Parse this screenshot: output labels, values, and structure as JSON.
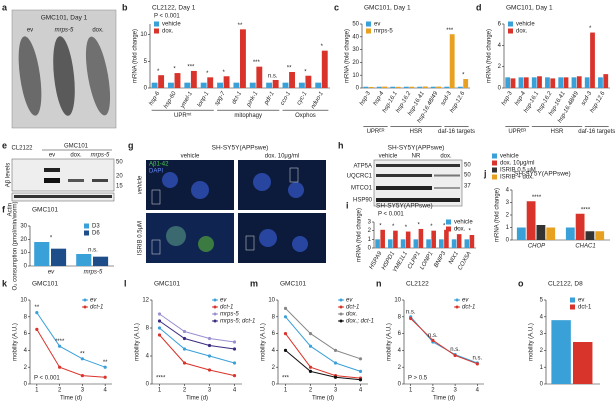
{
  "image_panels": {
    "a": {
      "label": "a",
      "title": "GMC101, Day 1",
      "lanes": [
        "ev",
        "mrps-5",
        "dox."
      ]
    },
    "e": {
      "label": "e",
      "groups": [
        "CL2122",
        "GMC101"
      ],
      "lanes": [
        "ev",
        "dox.",
        "mrps-5"
      ],
      "rows": [
        "Aβ levels",
        "Actin"
      ],
      "markers": [
        "50",
        "20",
        "15"
      ]
    },
    "g": {
      "label": "g",
      "title": "SH-SY5Y(APPswe)",
      "columns": [
        "vehicle",
        "dox. 10μg/ml"
      ],
      "rows": [
        "vehicle",
        "ISRIB 0.5μM"
      ],
      "stains": [
        "Aβ1-42",
        "DAPI"
      ]
    },
    "h": {
      "label": "h",
      "title": "SH-SY5Y(APPswe)",
      "lanes": [
        "vehicle",
        "NR",
        "dox."
      ],
      "proteins": [
        "ATP5A",
        "UQCRC1",
        "MTCO1",
        "HSP90"
      ],
      "markers": [
        "50",
        "50",
        "37"
      ]
    }
  },
  "chart_data": [
    {
      "panel": "b",
      "type": "bar",
      "title": "CL2122, Day 1",
      "annotation": "P < 0.001",
      "ylabel": "mRNA (fold change)",
      "legend": "upper left",
      "categories": [
        "hsp-6",
        "hsp-60",
        "ymel-1",
        "lonp-1",
        "spg-7",
        "dct-1",
        "pink-1",
        "pdr-1",
        "cco-1",
        "cyc-1",
        "nduo-1"
      ],
      "groups": [
        "UPRᵐᵗ",
        "UPRᵐᵗ",
        "UPRᵐᵗ",
        "UPRᵐᵗ",
        "mitophagy",
        "mitophagy",
        "mitophagy",
        "mitophagy",
        "Oxphos",
        "Oxphos",
        "Oxphos"
      ],
      "series": [
        {
          "name": "vehicle",
          "color": "#3aa0d8",
          "values": [
            1,
            1,
            1,
            1,
            1,
            1,
            1,
            1,
            1,
            1,
            1
          ]
        },
        {
          "name": "dox.",
          "color": "#d9342b",
          "values": [
            2.4,
            2.8,
            3.2,
            2.0,
            2.2,
            11.0,
            4.0,
            1.5,
            3.0,
            2.3,
            7.0
          ]
        }
      ],
      "significance": [
        "*",
        "*",
        "***",
        "*",
        "*",
        "**",
        "***",
        "n.s.",
        "**",
        "*",
        "*"
      ],
      "ylim": [
        0,
        12
      ],
      "yticks": [
        0,
        5,
        10
      ]
    },
    {
      "panel": "c",
      "type": "bar",
      "title": "GMC101, Day 1",
      "ylabel": "mRNA (fold change)",
      "legend": "upper left",
      "categories": [
        "hsp-3",
        "hsp-4",
        "hsp-16.1",
        "hsp-16.2",
        "hsp-16.41",
        "hsp-16.48/49",
        "sod-3",
        "hsp-12.6"
      ],
      "groups": [
        "UPRᴱᴿ",
        "UPRᴱᴿ",
        "HSR",
        "HSR",
        "HSR",
        "HSR",
        "daf-16 targets",
        "daf-16 targets"
      ],
      "series": [
        {
          "name": "ev",
          "color": "#3aa0d8",
          "values": [
            1,
            1,
            1,
            1,
            1,
            1,
            1,
            1
          ]
        },
        {
          "name": "mrps-5",
          "color": "#e8a020",
          "values": [
            0.8,
            1.1,
            0.9,
            1.0,
            1.2,
            1.1,
            42,
            7
          ]
        }
      ],
      "significance": [
        null,
        null,
        null,
        null,
        null,
        null,
        "***",
        "*"
      ],
      "ylim": [
        0,
        50
      ],
      "yticks": [
        0,
        10,
        20,
        30,
        40,
        50
      ]
    },
    {
      "panel": "d",
      "type": "bar",
      "title": "GMC101, Day 1",
      "ylabel": "mRNA (fold change)",
      "legend": "upper left",
      "categories": [
        "hsp-3",
        "hsp-4",
        "hsp-16.1",
        "hsp-16.2",
        "hsp-16.41",
        "hsp-16.48/49",
        "sod-3",
        "hsp-12.6"
      ],
      "groups": [
        "UPRᴱᴿ",
        "UPRᴱᴿ",
        "HSR",
        "HSR",
        "HSR",
        "HSR",
        "daf-16 targets",
        "daf-16 targets"
      ],
      "series": [
        {
          "name": "vehicle",
          "color": "#3aa0d8",
          "values": [
            1,
            1,
            1,
            1,
            1,
            1,
            1,
            1
          ]
        },
        {
          "name": "dox.",
          "color": "#d9342b",
          "values": [
            0.9,
            1.0,
            1.1,
            0.9,
            1.0,
            1.1,
            5.2,
            1.3
          ]
        }
      ],
      "significance": [
        null,
        null,
        null,
        null,
        null,
        null,
        "*",
        null
      ],
      "ylim": [
        0,
        6
      ],
      "yticks": [
        0,
        2,
        4,
        6
      ]
    },
    {
      "panel": "f",
      "type": "bar",
      "title": "GMC101",
      "ylabel": "O₂ consumption (pmol/min/worm)",
      "legend": "upper right",
      "categories": [
        "ev",
        "mrps-5"
      ],
      "series": [
        {
          "name": "D3",
          "color": "#3aa0d8",
          "values": [
            18,
            9
          ]
        },
        {
          "name": "D6",
          "color": "#1d4e89",
          "values": [
            13,
            7
          ]
        }
      ],
      "significance": [
        "*",
        "n.s."
      ],
      "ylim": [
        0,
        30
      ],
      "yticks": [
        0,
        10,
        20,
        30
      ]
    },
    {
      "panel": "i",
      "type": "bar",
      "title": "SH-SY5Y(APPswe)",
      "annotation": "P < 0.001",
      "ylabel": "mRNA (fold change)",
      "legend": "upper right",
      "categories": [
        "HSPA9",
        "HSPD1",
        "YME1L1",
        "CLPP1",
        "LONP1",
        "BNIP3",
        "NIX1",
        "COX5A"
      ],
      "series": [
        {
          "name": "vehicle",
          "color": "#3aa0d8",
          "values": [
            1,
            1,
            1,
            1,
            1,
            1,
            1,
            1
          ]
        },
        {
          "name": "dox.",
          "color": "#d9342b",
          "values": [
            2.1,
            2.0,
            1.9,
            2.2,
            2.0,
            2.1,
            1.6,
            1.5
          ]
        }
      ],
      "significance": [
        "*",
        "*",
        "*",
        "*",
        "*",
        "*",
        "*",
        "*"
      ],
      "ylim": [
        0,
        3
      ],
      "yticks": [
        0,
        1,
        2,
        3
      ]
    },
    {
      "panel": "j",
      "type": "bar",
      "title": "SH-SY5Y(APPswe)",
      "ylabel": "mRNA (fold change)",
      "legend": "above",
      "categories": [
        "CHOP",
        "CHAC1"
      ],
      "series": [
        {
          "name": "vehicle",
          "color": "#3aa0d8",
          "values": [
            1,
            1
          ]
        },
        {
          "name": "dox. 10μg/ml",
          "color": "#d9342b",
          "values": [
            3.1,
            2.1
          ]
        },
        {
          "name": "ISRIB 0.5 μM",
          "color": "#333333",
          "values": [
            1.2,
            0.7
          ]
        },
        {
          "name": "ISRIB + dox.",
          "color": "#e8a020",
          "values": [
            1.0,
            0.7
          ]
        }
      ],
      "significance": [
        "****",
        "****"
      ],
      "ylim": [
        0,
        4
      ],
      "yticks": [
        0,
        1,
        2,
        3,
        4
      ]
    },
    {
      "panel": "k",
      "type": "line",
      "title": "GMC101",
      "annotation": "P < 0.001",
      "ylabel": "mobility (A.U.)",
      "xlabel": "Time (d)",
      "legend": "upper right",
      "x": [
        1,
        2,
        3,
        4
      ],
      "series": [
        {
          "name": "ev",
          "color": "#3aa0d8",
          "values": [
            8.5,
            4.5,
            3.0,
            2.0
          ]
        },
        {
          "name": "dct-1",
          "color": "#d9342b",
          "values": [
            6.5,
            2.0,
            1.0,
            0.8
          ]
        }
      ],
      "significance": [
        "**",
        "****",
        "**",
        "**"
      ],
      "xlim": [
        0.7,
        4.3
      ],
      "xticks": [
        1,
        2,
        3,
        4
      ],
      "ylim": [
        0,
        10
      ],
      "yticks": [
        0,
        2,
        4,
        6,
        8,
        10
      ]
    },
    {
      "panel": "l",
      "type": "line",
      "title": "GMC101",
      "annotation": "****",
      "ylabel": "mobility (A.U.)",
      "xlabel": "Time (d)",
      "legend": "upper right",
      "x": [
        1,
        2,
        3,
        4
      ],
      "series": [
        {
          "name": "ev",
          "color": "#3aa0d8",
          "values": [
            8,
            5,
            4,
            3
          ]
        },
        {
          "name": "dct-1",
          "color": "#d9342b",
          "values": [
            7,
            3,
            2,
            1.2
          ]
        },
        {
          "name": "mrps-5",
          "color": "#9b8fd0",
          "values": [
            10,
            7.5,
            6.5,
            6
          ]
        },
        {
          "name": "mrps-5; dct-1",
          "color": "#3b2a80",
          "values": [
            9,
            6.5,
            5.5,
            5
          ]
        }
      ],
      "xlim": [
        0.7,
        4.3
      ],
      "xticks": [
        1,
        2,
        3,
        4
      ],
      "ylim": [
        0,
        12
      ],
      "yticks": [
        0,
        4,
        8,
        12
      ]
    },
    {
      "panel": "m",
      "type": "line",
      "title": "GMC101",
      "annotation": "***",
      "ylabel": "mobility (A.U.)",
      "xlabel": "Time (d)",
      "legend": "upper right",
      "x": [
        1,
        2,
        3,
        4
      ],
      "series": [
        {
          "name": "ev",
          "color": "#3aa0d8",
          "values": [
            8,
            4.5,
            2.5,
            1.5
          ]
        },
        {
          "name": "dct-1",
          "color": "#d9342b",
          "values": [
            6,
            2,
            1,
            0.7
          ]
        },
        {
          "name": "dox.",
          "color": "#888888",
          "values": [
            9,
            6,
            4,
            3
          ]
        },
        {
          "name": "dox.; dct-1",
          "color": "#111111",
          "values": [
            4,
            1.5,
            0.8,
            0.5
          ]
        }
      ],
      "xlim": [
        0.7,
        4.3
      ],
      "xticks": [
        1,
        2,
        3,
        4
      ],
      "ylim": [
        0,
        10
      ],
      "yticks": [
        0,
        2,
        4,
        6,
        8,
        10
      ]
    },
    {
      "panel": "n",
      "type": "line",
      "title": "CL2122",
      "annotation": "P > 0.5",
      "ylabel": "mobility (A.U.)",
      "xlabel": "Time (d)",
      "legend": "upper right",
      "x": [
        1,
        2,
        3,
        4
      ],
      "series": [
        {
          "name": "ev",
          "color": "#3aa0d8",
          "values": [
            8,
            5,
            3.5,
            2.5
          ]
        },
        {
          "name": "dct-1",
          "color": "#d9342b",
          "values": [
            7.8,
            5.2,
            3.4,
            2.4
          ]
        }
      ],
      "significance": [
        "n.s.",
        "n.s.",
        "n.s.",
        "n.s."
      ],
      "xlim": [
        0.7,
        4.3
      ],
      "xticks": [
        1,
        2,
        3,
        4
      ],
      "ylim": [
        0,
        10
      ],
      "yticks": [
        0,
        2,
        4,
        6,
        8,
        10
      ]
    },
    {
      "panel": "o",
      "type": "bar",
      "title": "CL2122, D8",
      "ylabel": "mobility (A.U.)",
      "legend": "upper right",
      "categories": [
        null
      ],
      "series": [
        {
          "name": "ev",
          "color": "#3aa0d8",
          "values": [
            3.8
          ]
        },
        {
          "name": "dct-1",
          "color": "#d9342b",
          "values": [
            2.5
          ]
        }
      ],
      "ylim": [
        0,
        5
      ],
      "yticks": [
        0,
        1,
        2,
        3,
        4,
        5
      ]
    }
  ]
}
